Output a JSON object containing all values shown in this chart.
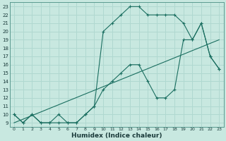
{
  "xlabel": "Humidex (Indice chaleur)",
  "bg_color": "#c8e8e0",
  "grid_color": "#b0d8d0",
  "line_color": "#1a6e60",
  "xlim": [
    -0.5,
    23.5
  ],
  "ylim": [
    8.5,
    23.5
  ],
  "xticks": [
    0,
    1,
    2,
    3,
    4,
    5,
    6,
    7,
    8,
    9,
    10,
    11,
    12,
    13,
    14,
    15,
    16,
    17,
    18,
    19,
    20,
    21,
    22,
    23
  ],
  "yticks": [
    9,
    10,
    11,
    12,
    13,
    14,
    15,
    16,
    17,
    18,
    19,
    20,
    21,
    22,
    23
  ],
  "line1_x": [
    0,
    1,
    2,
    3,
    4,
    5,
    6,
    7,
    8,
    9,
    10,
    11,
    12,
    13,
    14,
    15,
    16,
    17,
    18,
    19,
    20,
    21,
    22,
    23
  ],
  "line1_y": [
    9,
    9.43,
    9.87,
    10.3,
    10.74,
    11.17,
    11.61,
    12.04,
    12.48,
    12.91,
    13.35,
    13.78,
    14.22,
    14.65,
    15.09,
    15.52,
    15.96,
    16.39,
    16.83,
    17.26,
    17.7,
    18.13,
    18.57,
    19.0
  ],
  "line2_x": [
    0,
    1,
    2,
    3,
    4,
    5,
    6,
    7,
    8,
    9,
    10,
    11,
    12,
    13,
    14,
    15,
    16,
    17,
    18,
    19,
    20,
    21,
    22,
    23
  ],
  "line2_y": [
    10,
    9,
    10,
    9,
    9,
    10,
    9,
    9,
    10,
    11,
    13,
    14,
    15,
    16,
    16,
    14,
    12,
    12,
    13,
    19,
    19,
    21,
    17,
    15.5
  ],
  "line3_x": [
    0,
    1,
    2,
    3,
    4,
    5,
    6,
    7,
    8,
    9,
    10,
    11,
    12,
    13,
    14,
    15,
    16,
    17,
    18,
    19,
    20,
    21,
    22,
    23
  ],
  "line3_y": [
    10,
    9,
    10,
    9,
    9,
    9,
    9,
    9,
    10,
    11,
    20,
    21,
    22,
    23,
    23,
    22,
    22,
    22,
    22,
    21,
    19,
    21,
    17,
    15.5
  ]
}
